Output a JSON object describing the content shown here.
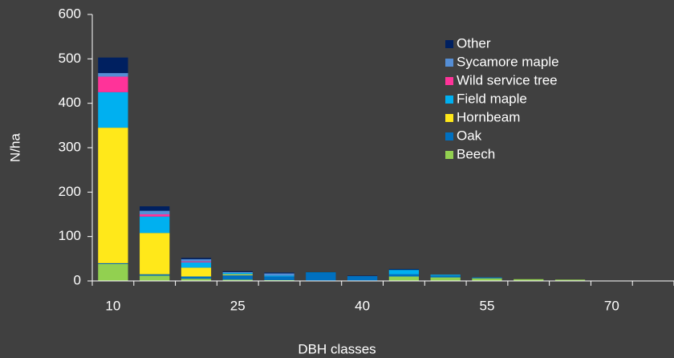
{
  "chart_data": {
    "type": "stacked_bar",
    "x_label": "DBH classes",
    "y_label": "N/ha",
    "categories": [
      "10",
      null,
      null,
      "25",
      null,
      null,
      "40",
      null,
      null,
      "55",
      null,
      null,
      "70",
      null
    ],
    "series": [
      {
        "name": "Beech",
        "color": "#92d050",
        "values": [
          38,
          12,
          5,
          3,
          2,
          1,
          1,
          10,
          8,
          6,
          4,
          3,
          0,
          0
        ]
      },
      {
        "name": "Oak",
        "color": "#0070c0",
        "values": [
          2,
          3,
          5,
          10,
          8,
          17,
          10,
          5,
          4,
          2,
          0,
          0,
          0,
          0
        ]
      },
      {
        "name": "Hornbeam",
        "color": "#ffe81a",
        "values": [
          305,
          93,
          20,
          2,
          0,
          0,
          0,
          0,
          0,
          0,
          0,
          0,
          0,
          0
        ]
      },
      {
        "name": "Field maple",
        "color": "#00b0f0",
        "values": [
          80,
          37,
          12,
          3,
          2,
          1,
          0,
          10,
          2,
          0,
          0,
          0,
          0,
          0
        ]
      },
      {
        "name": "Wild service tree",
        "color": "#ff3399",
        "values": [
          35,
          5,
          2,
          0,
          0,
          0,
          0,
          0,
          0,
          0,
          0,
          0,
          0,
          0
        ]
      },
      {
        "name": "Sycamore maple",
        "color": "#558ed5",
        "values": [
          8,
          8,
          5,
          2,
          5,
          0,
          0,
          0,
          0,
          0,
          0,
          0,
          0,
          0
        ]
      },
      {
        "name": "Other",
        "color": "#002060",
        "values": [
          35,
          10,
          3,
          2,
          2,
          1,
          1,
          2,
          0,
          0,
          0,
          0,
          0,
          0
        ]
      }
    ],
    "ylim": [
      0,
      600
    ],
    "yticks": [
      0,
      100,
      200,
      300,
      400,
      500,
      600
    ],
    "legend": "top-right",
    "grid": false
  }
}
